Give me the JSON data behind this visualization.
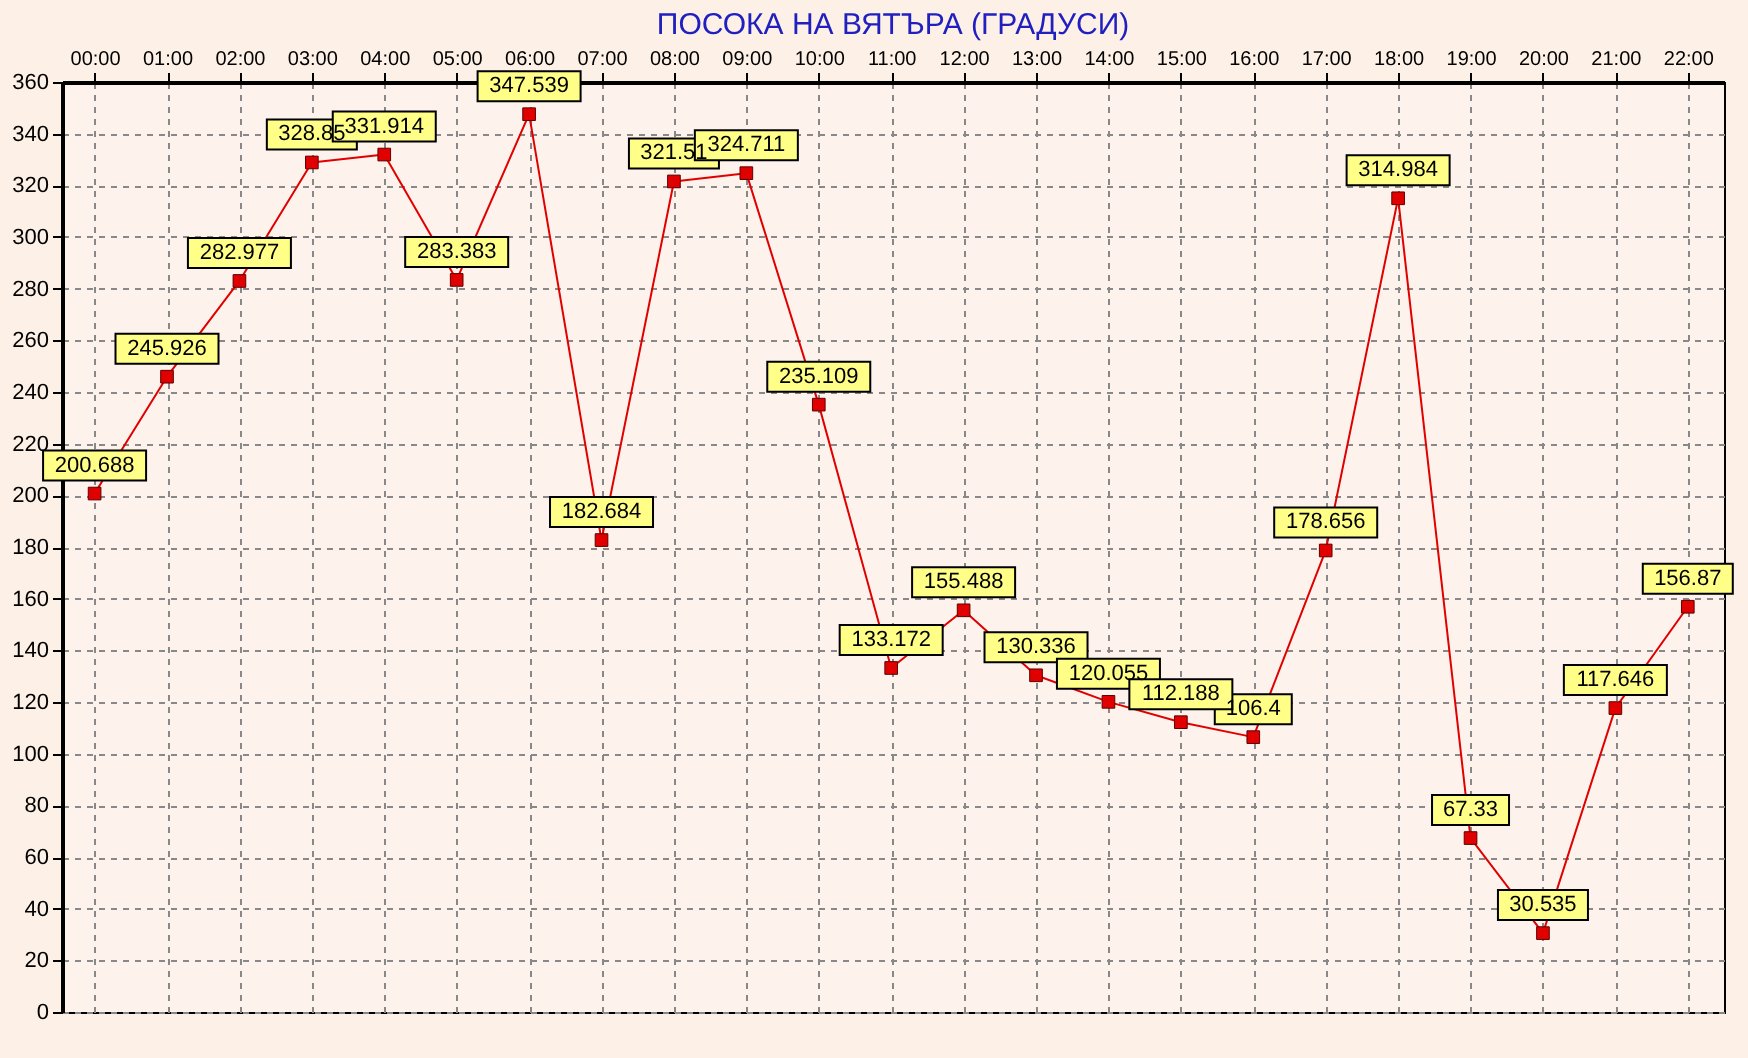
{
  "chart_data": {
    "type": "line",
    "title": "ПОСОКА НА ВЯТЪРА    (ГРАДУСИ)",
    "categories": [
      "00:00",
      "01:00",
      "02:00",
      "03:00",
      "04:00",
      "05:00",
      "06:00",
      "07:00",
      "08:00",
      "09:00",
      "10:00",
      "11:00",
      "12:00",
      "13:00",
      "14:00",
      "15:00",
      "16:00",
      "17:00",
      "18:00",
      "19:00",
      "20:00",
      "21:00",
      "22:00"
    ],
    "series": [
      {
        "color": "#e00000",
        "values": [
          200.688,
          245.926,
          282.977,
          328.85,
          331.914,
          283.383,
          347.539,
          182.684,
          321.51,
          324.711,
          235.109,
          133.172,
          155.488,
          130.336,
          120.055,
          112.188,
          106.4,
          178.656,
          314.984,
          67.33,
          30.535,
          117.646,
          156.87
        ]
      }
    ],
    "ylim": [
      0,
      360
    ],
    "yticks": [
      0,
      20,
      40,
      60,
      80,
      100,
      120,
      140,
      160,
      180,
      200,
      220,
      240,
      260,
      280,
      300,
      320,
      340,
      360
    ],
    "grid": true,
    "marker": "square",
    "data_labels": true
  }
}
